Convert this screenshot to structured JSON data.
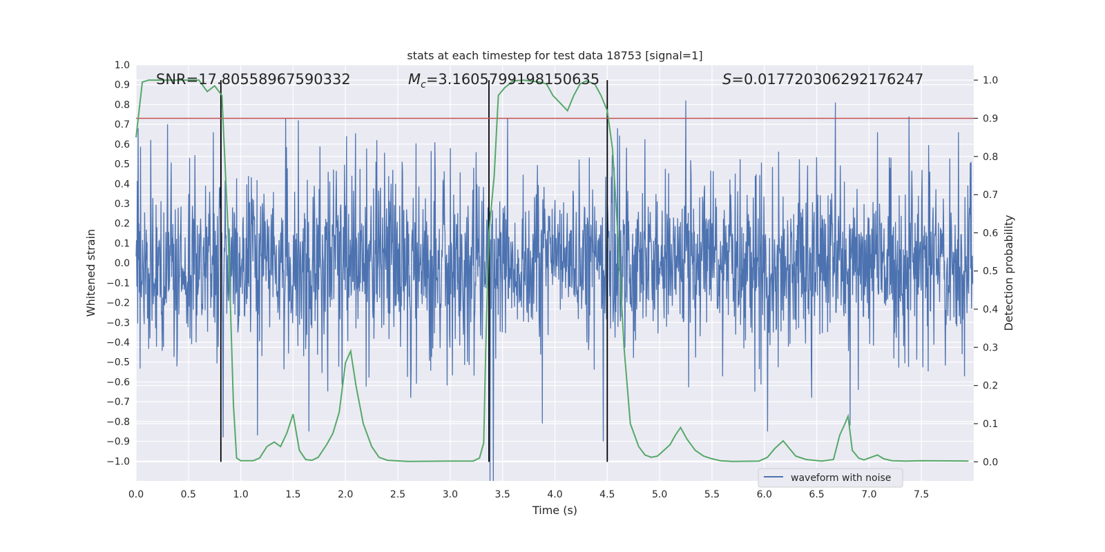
{
  "chart_data": {
    "type": "line",
    "title": "stats at each timestep for test data 18753 [signal=1]",
    "xlabel": "Time (s)",
    "ylabel": "Whitened strain",
    "ylabel_right": "Detection probability",
    "xlim": [
      0.0,
      8.0
    ],
    "ylim": [
      -1.1,
      1.0
    ],
    "ylim_right": [
      -0.05,
      1.04
    ],
    "xticks": [
      0.0,
      0.5,
      1.0,
      1.5,
      2.0,
      2.5,
      3.0,
      3.5,
      4.0,
      4.5,
      5.0,
      5.5,
      6.0,
      6.5,
      7.0,
      7.5
    ],
    "yticks": [
      1.0,
      0.9,
      0.8,
      0.7,
      0.6,
      0.5,
      0.4,
      0.3,
      0.2,
      0.1,
      0.0,
      -0.1,
      -0.2,
      -0.3,
      -0.4,
      -0.5,
      -0.6,
      -0.7,
      -0.8,
      -0.9,
      -1.0
    ],
    "yticks_right": [
      1.0,
      0.9,
      0.8,
      0.7,
      0.6,
      0.5,
      0.4,
      0.3,
      0.2,
      0.1,
      0.0
    ],
    "grid": true,
    "legend": {
      "placement": "lower-right",
      "entries": [
        "waveform with noise"
      ]
    },
    "annotations": {
      "snr": "SNR=17.80558967590332",
      "mc_symbol": "M",
      "mc_sub": "c",
      "mc_value": "=3.1605799198150635",
      "s_symbol": "S",
      "s_value": "=0.017720306292176247"
    },
    "threshold": {
      "axis": "right",
      "value": 0.9,
      "color": "#c44e52"
    },
    "vlines": [
      0.81,
      3.37,
      4.5
    ],
    "waveform": {
      "name": "waveform with noise",
      "color": "#4c72b0",
      "t_start": 0.0,
      "t_end": 7.99,
      "n_samples": 2048,
      "typical_amplitude": 0.33,
      "peaks": [
        {
          "x": 0.02,
          "y": 0.68
        },
        {
          "x": 0.3,
          "y": 0.7
        },
        {
          "x": 0.81,
          "y": 0.75
        },
        {
          "x": 0.83,
          "y": -0.88
        },
        {
          "x": 1.16,
          "y": -0.87
        },
        {
          "x": 1.43,
          "y": 0.73
        },
        {
          "x": 1.55,
          "y": 0.72
        },
        {
          "x": 1.65,
          "y": -0.85
        },
        {
          "x": 2.3,
          "y": 0.62
        },
        {
          "x": 3.0,
          "y": 0.58
        },
        {
          "x": 3.38,
          "y": -1.1
        },
        {
          "x": 3.41,
          "y": -1.1
        },
        {
          "x": 3.55,
          "y": 0.73
        },
        {
          "x": 3.88,
          "y": -0.81
        },
        {
          "x": 4.46,
          "y": -0.9
        },
        {
          "x": 4.6,
          "y": 0.68
        },
        {
          "x": 5.25,
          "y": 0.82
        },
        {
          "x": 6.03,
          "y": -0.85
        },
        {
          "x": 6.68,
          "y": 0.81
        },
        {
          "x": 6.82,
          "y": -0.82
        },
        {
          "x": 7.38,
          "y": 0.74
        }
      ]
    },
    "probability": {
      "color": "#55a868",
      "points": [
        [
          0.0,
          0.85
        ],
        [
          0.06,
          0.995
        ],
        [
          0.12,
          1.0
        ],
        [
          0.6,
          1.0
        ],
        [
          0.68,
          0.97
        ],
        [
          0.75,
          0.985
        ],
        [
          0.82,
          0.96
        ],
        [
          0.88,
          0.6
        ],
        [
          0.93,
          0.15
        ],
        [
          0.96,
          0.01
        ],
        [
          1.0,
          0.003
        ],
        [
          1.12,
          0.003
        ],
        [
          1.18,
          0.01
        ],
        [
          1.25,
          0.04
        ],
        [
          1.32,
          0.052
        ],
        [
          1.38,
          0.04
        ],
        [
          1.44,
          0.075
        ],
        [
          1.5,
          0.125
        ],
        [
          1.56,
          0.03
        ],
        [
          1.62,
          0.006
        ],
        [
          1.68,
          0.004
        ],
        [
          1.74,
          0.012
        ],
        [
          1.82,
          0.045
        ],
        [
          1.88,
          0.075
        ],
        [
          1.94,
          0.13
        ],
        [
          2.0,
          0.26
        ],
        [
          2.05,
          0.29
        ],
        [
          2.1,
          0.2
        ],
        [
          2.17,
          0.1
        ],
        [
          2.25,
          0.04
        ],
        [
          2.32,
          0.012
        ],
        [
          2.4,
          0.004
        ],
        [
          2.6,
          0.001
        ],
        [
          3.0,
          0.002
        ],
        [
          3.22,
          0.002
        ],
        [
          3.28,
          0.01
        ],
        [
          3.32,
          0.05
        ],
        [
          3.34,
          0.3
        ],
        [
          3.37,
          0.6
        ],
        [
          3.42,
          0.75
        ],
        [
          3.46,
          0.96
        ],
        [
          3.52,
          0.98
        ],
        [
          3.6,
          0.998
        ],
        [
          3.7,
          1.0
        ],
        [
          3.85,
          0.995
        ],
        [
          3.92,
          0.99
        ],
        [
          3.98,
          0.96
        ],
        [
          4.05,
          0.94
        ],
        [
          4.12,
          0.92
        ],
        [
          4.18,
          0.96
        ],
        [
          4.24,
          0.99
        ],
        [
          4.3,
          0.998
        ],
        [
          4.38,
          0.99
        ],
        [
          4.44,
          0.96
        ],
        [
          4.5,
          0.92
        ],
        [
          4.55,
          0.82
        ],
        [
          4.6,
          0.6
        ],
        [
          4.66,
          0.3
        ],
        [
          4.72,
          0.1
        ],
        [
          4.8,
          0.04
        ],
        [
          4.86,
          0.018
        ],
        [
          4.92,
          0.012
        ],
        [
          4.98,
          0.015
        ],
        [
          5.04,
          0.03
        ],
        [
          5.1,
          0.045
        ],
        [
          5.15,
          0.07
        ],
        [
          5.2,
          0.09
        ],
        [
          5.26,
          0.06
        ],
        [
          5.34,
          0.03
        ],
        [
          5.42,
          0.015
        ],
        [
          5.5,
          0.008
        ],
        [
          5.58,
          0.003
        ],
        [
          5.7,
          0.001
        ],
        [
          5.95,
          0.002
        ],
        [
          6.03,
          0.012
        ],
        [
          6.1,
          0.035
        ],
        [
          6.18,
          0.055
        ],
        [
          6.24,
          0.035
        ],
        [
          6.3,
          0.015
        ],
        [
          6.4,
          0.006
        ],
        [
          6.55,
          0.002
        ],
        [
          6.66,
          0.006
        ],
        [
          6.72,
          0.07
        ],
        [
          6.77,
          0.1
        ],
        [
          6.8,
          0.12
        ],
        [
          6.84,
          0.03
        ],
        [
          6.9,
          0.01
        ],
        [
          6.95,
          0.005
        ],
        [
          7.02,
          0.012
        ],
        [
          7.08,
          0.018
        ],
        [
          7.14,
          0.008
        ],
        [
          7.22,
          0.003
        ],
        [
          7.35,
          0.002
        ],
        [
          7.5,
          0.003
        ],
        [
          7.95,
          0.002
        ]
      ]
    }
  }
}
